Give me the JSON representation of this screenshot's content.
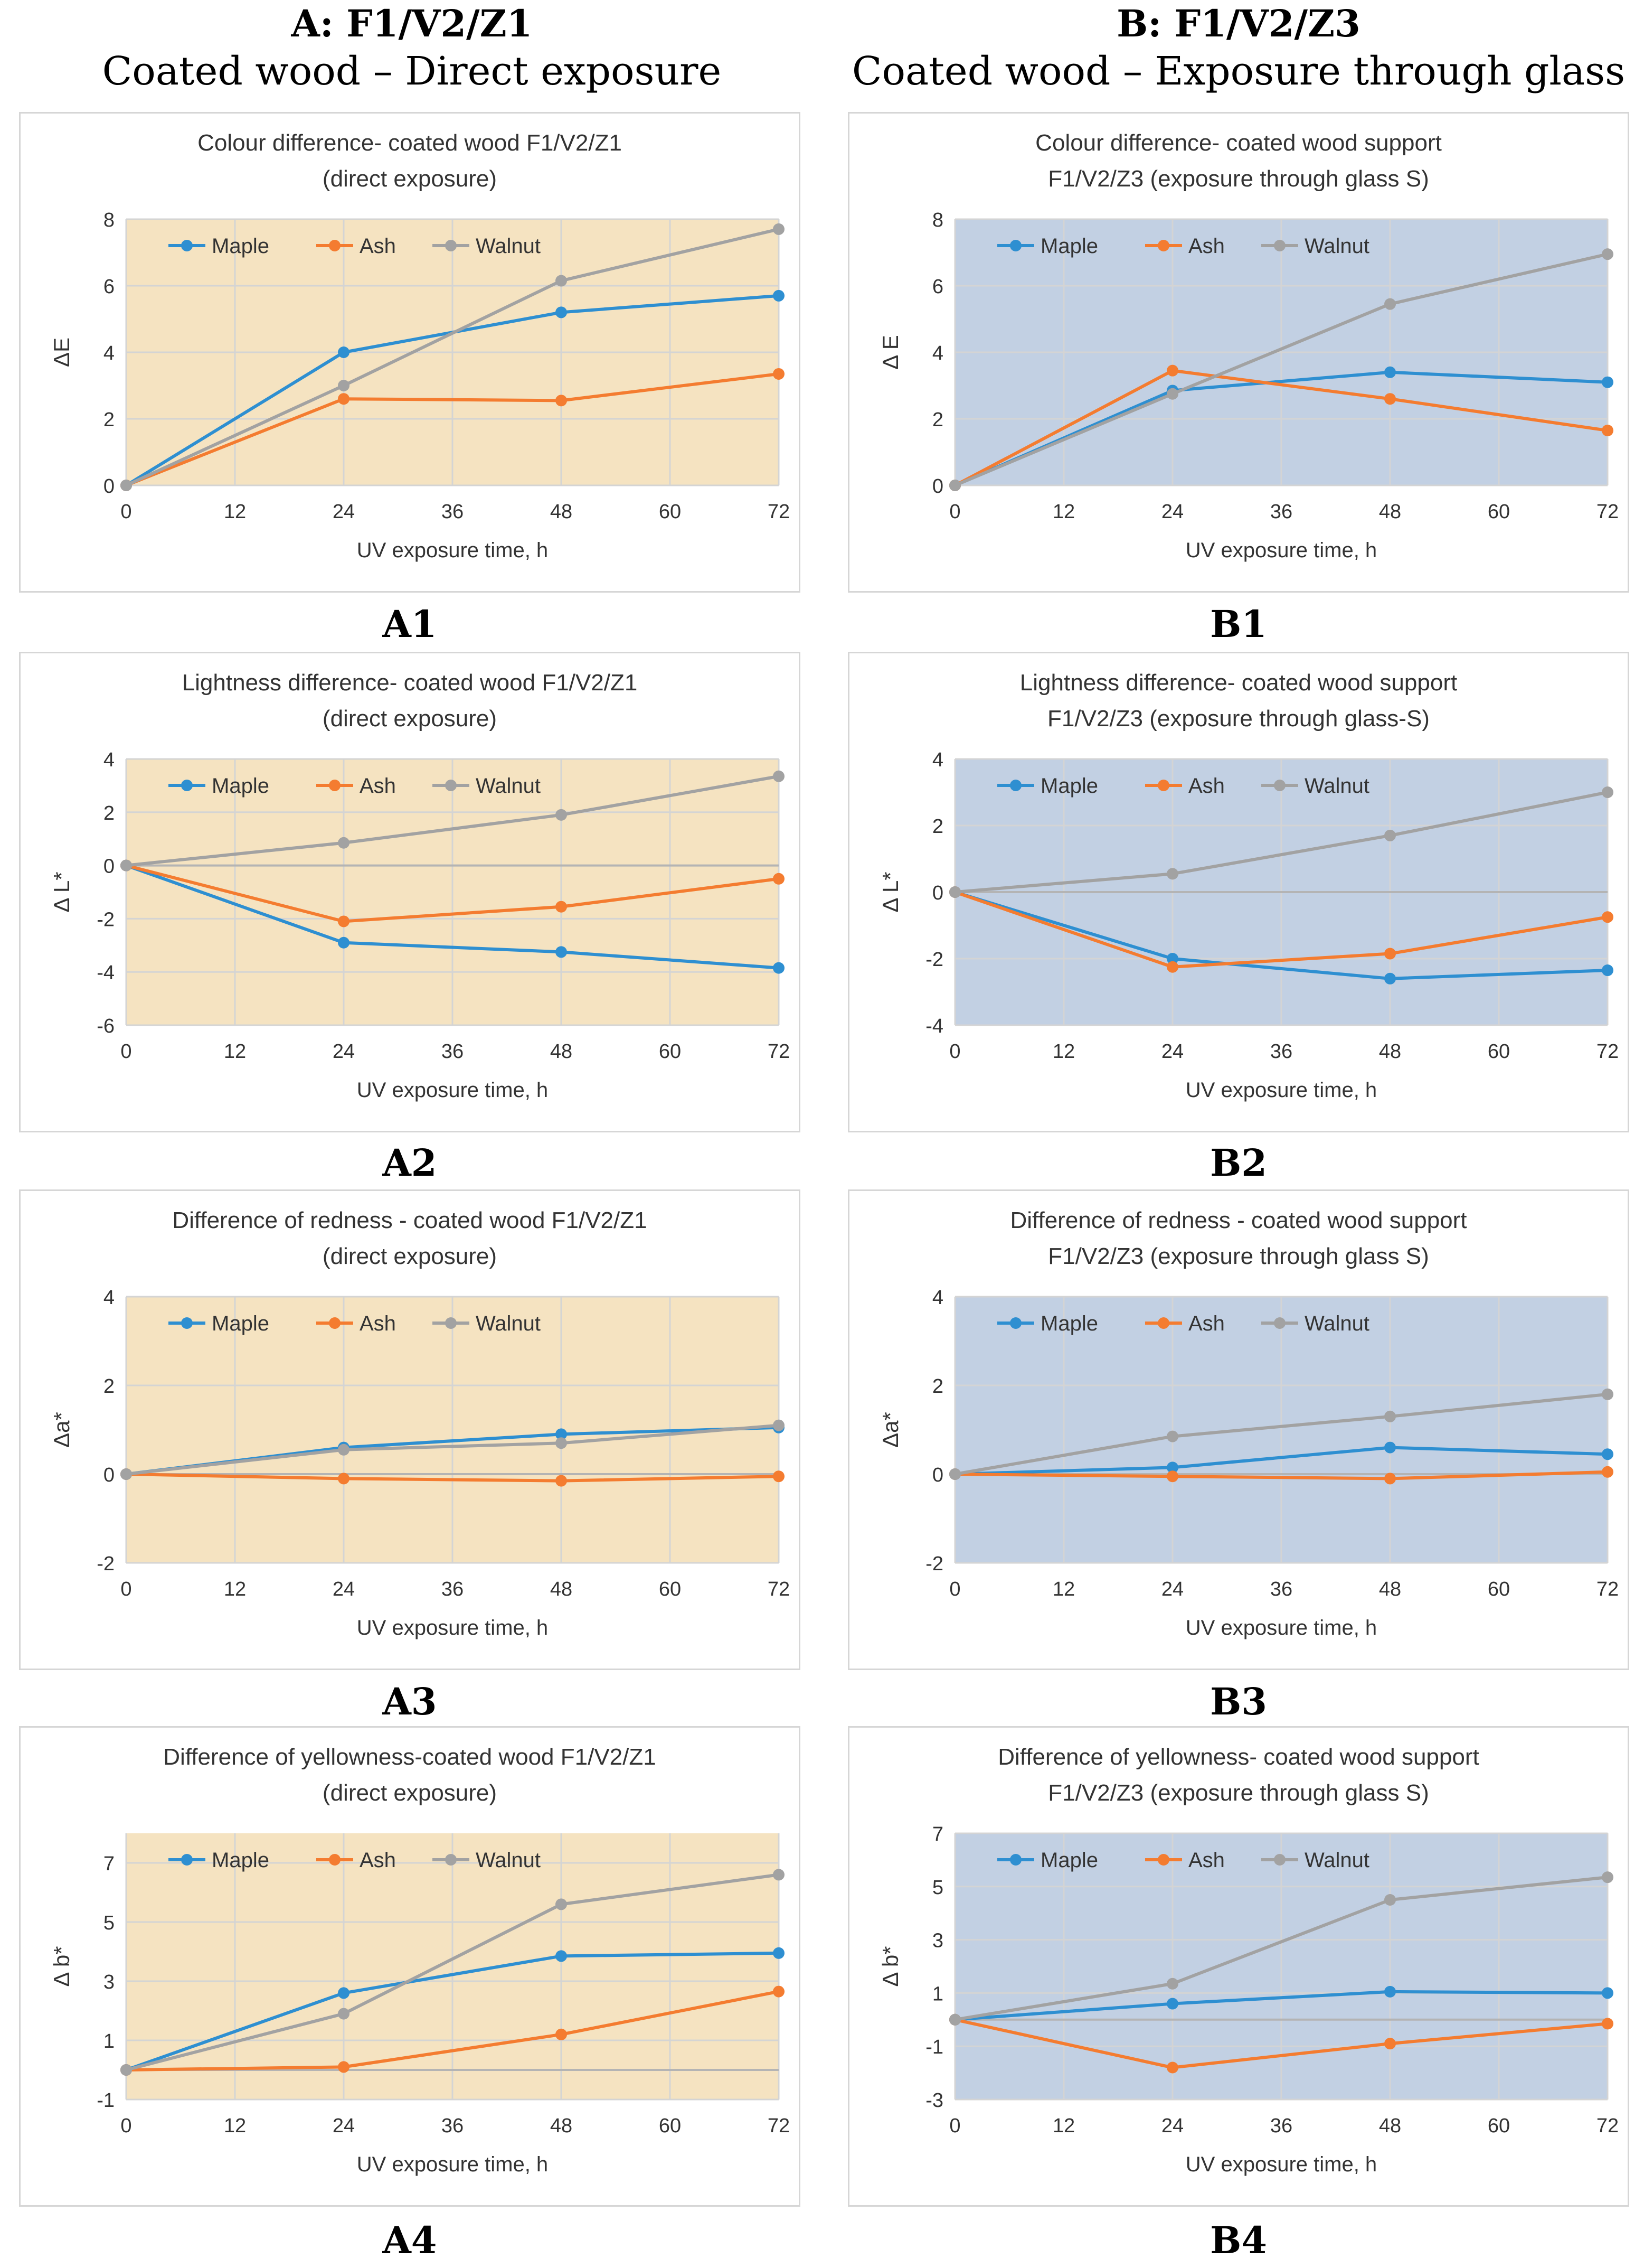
{
  "figure": {
    "left_column": {
      "letter": "A: F1/V2/Z1",
      "subtitle": "Coated wood – Direct exposure"
    },
    "right_column": {
      "letter": "B: F1/V2/Z3",
      "subtitle": "Coated wood – Exposure through glass"
    },
    "colors": {
      "maple": "#2e8fd1",
      "ash": "#f47c30",
      "walnut": "#a2a2a2",
      "bg_direct": "#f5e3c1",
      "bg_glass": "#c2d0e3",
      "grid": "#d4d4d4"
    }
  },
  "chart_data": [
    {
      "id": "A1",
      "panel_label": "A1",
      "type": "line",
      "title_lines": [
        "Colour difference- coated wood F1/V2/Z1",
        "(direct exposure)"
      ],
      "xlabel": "UV exposure time, h",
      "ylabel": "ΔE",
      "x_ticks": [
        "0",
        "12",
        "24",
        "36",
        "48",
        "60",
        "72"
      ],
      "y_ticks": [
        "0",
        "2",
        "4",
        "6",
        "8"
      ],
      "xlim": [
        0,
        72
      ],
      "ylim": [
        0,
        8
      ],
      "theme": "direct",
      "grid": true,
      "legend": "top-left",
      "series": [
        {
          "name": "Maple",
          "x": [
            0,
            24,
            48,
            72
          ],
          "y": [
            0,
            4.0,
            5.2,
            5.7
          ]
        },
        {
          "name": "Ash",
          "x": [
            0,
            24,
            48,
            72
          ],
          "y": [
            0,
            2.6,
            2.55,
            3.35
          ]
        },
        {
          "name": "Walnut",
          "x": [
            0,
            24,
            48,
            72
          ],
          "y": [
            0,
            3.0,
            6.15,
            7.7
          ]
        }
      ]
    },
    {
      "id": "B1",
      "panel_label": "B1",
      "type": "line",
      "title_lines": [
        "Colour difference- coated wood support",
        "F1/V2/Z3 (exposure through glass S)"
      ],
      "xlabel": "UV exposure time, h",
      "ylabel": "Δ E",
      "x_ticks": [
        "0",
        "12",
        "24",
        "36",
        "48",
        "60",
        "72"
      ],
      "y_ticks": [
        "0",
        "2",
        "4",
        "6",
        "8"
      ],
      "xlim": [
        0,
        72
      ],
      "ylim": [
        0,
        8
      ],
      "theme": "glass",
      "grid": true,
      "legend": "top-left",
      "series": [
        {
          "name": "Maple",
          "x": [
            0,
            24,
            48,
            72
          ],
          "y": [
            0,
            2.85,
            3.4,
            3.1
          ]
        },
        {
          "name": "Ash",
          "x": [
            0,
            24,
            48,
            72
          ],
          "y": [
            0,
            3.45,
            2.6,
            1.65
          ]
        },
        {
          "name": "Walnut",
          "x": [
            0,
            24,
            48,
            72
          ],
          "y": [
            0,
            2.75,
            5.45,
            6.95
          ]
        }
      ]
    },
    {
      "id": "A2",
      "panel_label": "A2",
      "type": "line",
      "title_lines": [
        "Lightness difference- coated wood F1/V2/Z1",
        "(direct exposure)"
      ],
      "xlabel": "UV exposure time, h",
      "ylabel": "Δ L*",
      "x_ticks": [
        "0",
        "12",
        "24",
        "36",
        "48",
        "60",
        "72"
      ],
      "y_ticks": [
        "-6",
        "-4",
        "-2",
        "0",
        "2",
        "4"
      ],
      "xlim": [
        0,
        72
      ],
      "ylim": [
        -6,
        4
      ],
      "theme": "direct",
      "grid": true,
      "legend": "top-left",
      "series": [
        {
          "name": "Maple",
          "x": [
            0,
            24,
            48,
            72
          ],
          "y": [
            0,
            -2.9,
            -3.25,
            -3.85
          ]
        },
        {
          "name": "Ash",
          "x": [
            0,
            24,
            48,
            72
          ],
          "y": [
            0,
            -2.1,
            -1.55,
            -0.5
          ]
        },
        {
          "name": "Walnut",
          "x": [
            0,
            24,
            48,
            72
          ],
          "y": [
            0,
            0.85,
            1.9,
            3.35
          ]
        }
      ]
    },
    {
      "id": "B2",
      "panel_label": "B2",
      "type": "line",
      "title_lines": [
        "Lightness difference- coated wood support",
        "F1/V2/Z3 (exposure through glass-S)"
      ],
      "xlabel": "UV exposure time, h",
      "ylabel": "Δ L*",
      "x_ticks": [
        "0",
        "12",
        "24",
        "36",
        "48",
        "60",
        "72"
      ],
      "y_ticks": [
        "-4",
        "-2",
        "0",
        "2",
        "4"
      ],
      "xlim": [
        0,
        72
      ],
      "ylim": [
        -4,
        4
      ],
      "theme": "glass",
      "grid": true,
      "legend": "top-left",
      "series": [
        {
          "name": "Maple",
          "x": [
            0,
            24,
            48,
            72
          ],
          "y": [
            0,
            -2.0,
            -2.6,
            -2.35
          ]
        },
        {
          "name": "Ash",
          "x": [
            0,
            24,
            48,
            72
          ],
          "y": [
            0,
            -2.25,
            -1.85,
            -0.75
          ]
        },
        {
          "name": "Walnut",
          "x": [
            0,
            24,
            48,
            72
          ],
          "y": [
            0,
            0.55,
            1.7,
            3.0
          ]
        }
      ]
    },
    {
      "id": "A3",
      "panel_label": "A3",
      "type": "line",
      "title_lines": [
        "Difference of redness - coated wood F1/V2/Z1",
        "(direct exposure)"
      ],
      "xlabel": "UV exposure time, h",
      "ylabel": "Δa*",
      "x_ticks": [
        "0",
        "12",
        "24",
        "36",
        "48",
        "60",
        "72"
      ],
      "y_ticks": [
        "-2",
        "0",
        "2",
        "4"
      ],
      "xlim": [
        0,
        72
      ],
      "ylim": [
        -2,
        4
      ],
      "theme": "direct",
      "grid": true,
      "legend": "top-left",
      "series": [
        {
          "name": "Maple",
          "x": [
            0,
            24,
            48,
            72
          ],
          "y": [
            0,
            0.6,
            0.9,
            1.05
          ]
        },
        {
          "name": "Ash",
          "x": [
            0,
            24,
            48,
            72
          ],
          "y": [
            0,
            -0.1,
            -0.15,
            -0.05
          ]
        },
        {
          "name": "Walnut",
          "x": [
            0,
            24,
            48,
            72
          ],
          "y": [
            0,
            0.55,
            0.7,
            1.1
          ]
        }
      ]
    },
    {
      "id": "B3",
      "panel_label": "B3",
      "type": "line",
      "title_lines": [
        "Difference of redness - coated wood support",
        "F1/V2/Z3 (exposure through glass S)"
      ],
      "xlabel": "UV exposure time, h",
      "ylabel": "Δa*",
      "x_ticks": [
        "0",
        "12",
        "24",
        "36",
        "48",
        "60",
        "72"
      ],
      "y_ticks": [
        "-2",
        "0",
        "2",
        "4"
      ],
      "xlim": [
        0,
        72
      ],
      "ylim": [
        -2,
        4
      ],
      "theme": "glass",
      "grid": true,
      "legend": "top-left",
      "series": [
        {
          "name": "Maple",
          "x": [
            0,
            24,
            48,
            72
          ],
          "y": [
            0,
            0.15,
            0.6,
            0.45
          ]
        },
        {
          "name": "Ash",
          "x": [
            0,
            24,
            48,
            72
          ],
          "y": [
            0,
            -0.05,
            -0.1,
            0.05
          ]
        },
        {
          "name": "Walnut",
          "x": [
            0,
            24,
            48,
            72
          ],
          "y": [
            0,
            0.85,
            1.3,
            1.8
          ]
        }
      ]
    },
    {
      "id": "A4",
      "panel_label": "A4",
      "type": "line",
      "title_lines": [
        "Difference of yellowness-coated wood F1/V2/Z1",
        "(direct exposure)"
      ],
      "xlabel": "UV exposure time, h",
      "ylabel": "Δ b*",
      "x_ticks": [
        "0",
        "12",
        "24",
        "36",
        "48",
        "60",
        "72"
      ],
      "y_ticks": [
        "-1",
        "1",
        "3",
        "5",
        "7"
      ],
      "xlim": [
        0,
        72
      ],
      "ylim": [
        -1,
        8
      ],
      "theme": "direct",
      "grid": true,
      "legend": "top-left",
      "series": [
        {
          "name": "Maple",
          "x": [
            0,
            24,
            48,
            72
          ],
          "y": [
            0,
            2.6,
            3.85,
            3.95
          ]
        },
        {
          "name": "Ash",
          "x": [
            0,
            24,
            48,
            72
          ],
          "y": [
            0,
            0.1,
            1.2,
            2.65
          ]
        },
        {
          "name": "Walnut",
          "x": [
            0,
            24,
            48,
            72
          ],
          "y": [
            0,
            1.9,
            5.6,
            6.6
          ]
        }
      ]
    },
    {
      "id": "B4",
      "panel_label": "B4",
      "type": "line",
      "title_lines": [
        "Difference of yellowness- coated wood support",
        "F1/V2/Z3 (exposure through glass S)"
      ],
      "xlabel": "UV exposure time, h",
      "ylabel": "Δ b*",
      "x_ticks": [
        "0",
        "12",
        "24",
        "36",
        "48",
        "60",
        "72"
      ],
      "y_ticks": [
        "-3",
        "-1",
        "1",
        "3",
        "5",
        "7"
      ],
      "xlim": [
        0,
        72
      ],
      "ylim": [
        -3,
        7
      ],
      "theme": "glass",
      "grid": true,
      "legend": "top-left",
      "series": [
        {
          "name": "Maple",
          "x": [
            0,
            24,
            48,
            72
          ],
          "y": [
            0,
            0.6,
            1.05,
            1.0
          ]
        },
        {
          "name": "Ash",
          "x": [
            0,
            24,
            48,
            72
          ],
          "y": [
            0,
            -1.8,
            -0.9,
            -0.15
          ]
        },
        {
          "name": "Walnut",
          "x": [
            0,
            24,
            48,
            72
          ],
          "y": [
            0,
            1.35,
            4.5,
            5.35
          ]
        }
      ]
    }
  ]
}
